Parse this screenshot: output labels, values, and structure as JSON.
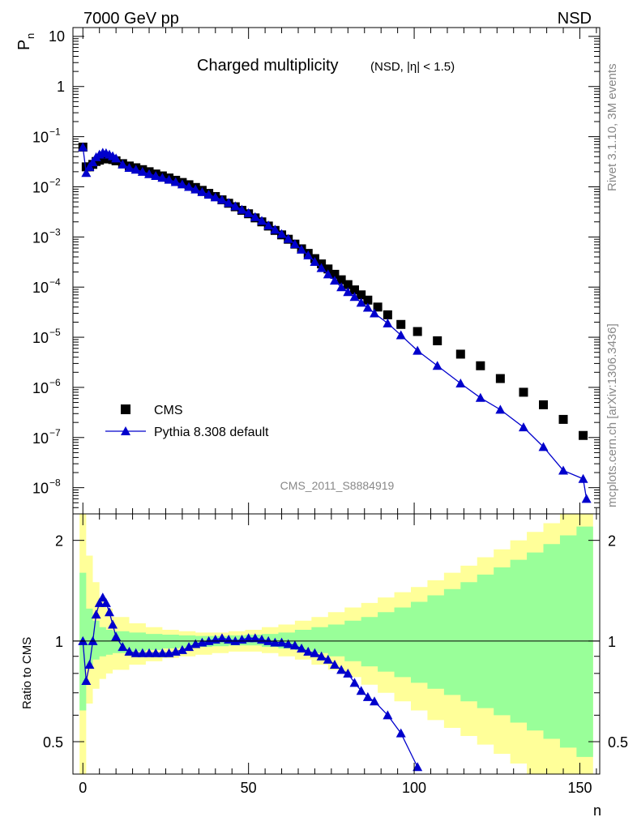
{
  "header": {
    "left": "7000 GeV pp",
    "right": "NSD"
  },
  "side": {
    "rivet": "Rivet 3.1.10,  3M events",
    "mcplots": "mcplots.cern.ch [arXiv:1306.3436]"
  },
  "watermark": "CMS_2011_S8884919",
  "chart_data": [
    {
      "type": "scatter",
      "title": "Charged multiplicity",
      "subtitle": "(NSD, |η| < 1.5)",
      "ylabel": "P",
      "ylabel_sub": "n",
      "yscale": "log",
      "ylim": [
        3e-09,
        15
      ],
      "xlim": [
        -3,
        156
      ],
      "ytick_labels": [
        {
          "v": 10,
          "label": "10"
        },
        {
          "v": 1,
          "label": "1"
        },
        {
          "v": 0.1,
          "base": "10",
          "exp": "−1"
        },
        {
          "v": 0.01,
          "base": "10",
          "exp": "−2"
        },
        {
          "v": 0.001,
          "base": "10",
          "exp": "−3"
        },
        {
          "v": 0.0001,
          "base": "10",
          "exp": "−4"
        },
        {
          "v": 1e-05,
          "base": "10",
          "exp": "−5"
        },
        {
          "v": 1e-06,
          "base": "10",
          "exp": "−6"
        },
        {
          "v": 1e-07,
          "base": "10",
          "exp": "−7"
        },
        {
          "v": 1e-08,
          "base": "10",
          "exp": "−8"
        }
      ],
      "legend": [
        {
          "label": "CMS",
          "marker": "square",
          "color": "#000000"
        },
        {
          "label": "Pythia 8.308 default",
          "marker": "triangle",
          "color": "#0000cc"
        }
      ],
      "series": [
        {
          "name": "CMS",
          "marker": "square",
          "color": "#000000",
          "points": [
            [
              0,
              0.062
            ],
            [
              1,
              0.025
            ],
            [
              2,
              0.025
            ],
            [
              3,
              0.028
            ],
            [
              4,
              0.032
            ],
            [
              5,
              0.034
            ],
            [
              6,
              0.036
            ],
            [
              7,
              0.037
            ],
            [
              8,
              0.036
            ],
            [
              9,
              0.035
            ],
            [
              10,
              0.033
            ],
            [
              12,
              0.029
            ],
            [
              14,
              0.026
            ],
            [
              16,
              0.024
            ],
            [
              18,
              0.022
            ],
            [
              20,
              0.02
            ],
            [
              22,
              0.018
            ],
            [
              24,
              0.0165
            ],
            [
              26,
              0.015
            ],
            [
              28,
              0.0135
            ],
            [
              30,
              0.0122
            ],
            [
              32,
              0.011
            ],
            [
              34,
              0.0097
            ],
            [
              36,
              0.0085
            ],
            [
              38,
              0.0074
            ],
            [
              40,
              0.0064
            ],
            [
              42,
              0.0055
            ],
            [
              44,
              0.0047
            ],
            [
              46,
              0.004
            ],
            [
              48,
              0.0034
            ],
            [
              50,
              0.0029
            ],
            [
              52,
              0.0024
            ],
            [
              54,
              0.002
            ],
            [
              56,
              0.00165
            ],
            [
              58,
              0.00135
            ],
            [
              60,
              0.0011
            ],
            [
              62,
              0.0009
            ],
            [
              64,
              0.00072
            ],
            [
              66,
              0.00058
            ],
            [
              68,
              0.00047
            ],
            [
              70,
              0.00037
            ],
            [
              72,
              0.00029
            ],
            [
              74,
              0.00023
            ],
            [
              76,
              0.00018
            ],
            [
              78,
              0.00014
            ],
            [
              80,
              0.000112
            ],
            [
              82,
              8.8e-05
            ],
            [
              84,
              7e-05
            ],
            [
              86,
              5.5e-05
            ],
            [
              89,
              4e-05
            ],
            [
              92,
              2.8e-05
            ],
            [
              96,
              1.8e-05
            ],
            [
              101,
              1.3e-05
            ],
            [
              107,
              8.5e-06
            ],
            [
              114,
              4.6e-06
            ],
            [
              120,
              2.7e-06
            ],
            [
              126,
              1.5e-06
            ],
            [
              133,
              8e-07
            ],
            [
              139,
              4.5e-07
            ],
            [
              145,
              2.3e-07
            ],
            [
              151,
              1.1e-07
            ]
          ]
        },
        {
          "name": "Pythia 8.308 default",
          "marker": "triangle",
          "color": "#0000cc",
          "points": [
            [
              0,
              0.062
            ],
            [
              1,
              0.019
            ],
            [
              2,
              0.025
            ],
            [
              3,
              0.031
            ],
            [
              4,
              0.039
            ],
            [
              5,
              0.044
            ],
            [
              6,
              0.048
            ],
            [
              7,
              0.047
            ],
            [
              8,
              0.044
            ],
            [
              9,
              0.041
            ],
            [
              10,
              0.037
            ],
            [
              12,
              0.028
            ],
            [
              14,
              0.024
            ],
            [
              16,
              0.022
            ],
            [
              18,
              0.02
            ],
            [
              20,
              0.018
            ],
            [
              22,
              0.0165
            ],
            [
              24,
              0.0152
            ],
            [
              26,
              0.0139
            ],
            [
              28,
              0.0125
            ],
            [
              30,
              0.0112
            ],
            [
              32,
              0.01
            ],
            [
              34,
              0.0089
            ],
            [
              36,
              0.0079
            ],
            [
              38,
              0.007
            ],
            [
              40,
              0.0062
            ],
            [
              42,
              0.0055
            ],
            [
              44,
              0.0048
            ],
            [
              46,
              0.0041
            ],
            [
              48,
              0.0035
            ],
            [
              50,
              0.003
            ],
            [
              52,
              0.0025
            ],
            [
              54,
              0.0021
            ],
            [
              56,
              0.0017
            ],
            [
              58,
              0.0014
            ],
            [
              60,
              0.00115
            ],
            [
              62,
              0.00092
            ],
            [
              64,
              0.00072
            ],
            [
              66,
              0.00056
            ],
            [
              68,
              0.00043
            ],
            [
              70,
              0.00032
            ],
            [
              72,
              0.00024
            ],
            [
              74,
              0.00018
            ],
            [
              76,
              0.000135
            ],
            [
              78,
              0.0001
            ],
            [
              80,
              8e-05
            ],
            [
              82,
              6.4e-05
            ],
            [
              84,
              4.9e-05
            ],
            [
              86,
              3.9e-05
            ],
            [
              88,
              3e-05
            ],
            [
              92,
              1.9e-05
            ],
            [
              96,
              1.1e-05
            ],
            [
              101,
              5.4e-06
            ],
            [
              107,
              2.7e-06
            ],
            [
              114,
              1.2e-06
            ],
            [
              120,
              6.2e-07
            ],
            [
              126,
              3.6e-07
            ],
            [
              133,
              1.6e-07
            ],
            [
              139,
              6.5e-08
            ],
            [
              145,
              2.2e-08
            ],
            [
              151,
              1.5e-08
            ],
            [
              152,
              6e-09
            ]
          ]
        }
      ]
    },
    {
      "type": "line",
      "ylabel": "Ratio to CMS",
      "yscale": "log",
      "ylim": [
        0.4,
        2.4
      ],
      "xlim": [
        -3,
        156
      ],
      "reference": 1,
      "xlabel": "n",
      "xticks": [
        0,
        50,
        100,
        150
      ],
      "yticks": [
        {
          "v": 2,
          "label": "2"
        },
        {
          "v": 1,
          "label": "1"
        },
        {
          "v": 0.5,
          "label": "0.5"
        }
      ],
      "bands": [
        {
          "name": "outer",
          "color": "#ffff99",
          "x": [
            0,
            2,
            4,
            6,
            8,
            10,
            15,
            20,
            25,
            30,
            35,
            40,
            45,
            50,
            55,
            60,
            65,
            70,
            75,
            80,
            85,
            90,
            95,
            100,
            105,
            110,
            115,
            120,
            125,
            130,
            135,
            140,
            145,
            150
          ],
          "lo": [
            0.4,
            0.65,
            0.72,
            0.77,
            0.8,
            0.82,
            0.85,
            0.87,
            0.89,
            0.9,
            0.91,
            0.92,
            0.93,
            0.93,
            0.92,
            0.9,
            0.88,
            0.85,
            0.82,
            0.78,
            0.74,
            0.7,
            0.66,
            0.62,
            0.58,
            0.55,
            0.52,
            0.49,
            0.46,
            0.43,
            0.4,
            0.4,
            0.4,
            0.4
          ],
          "hi": [
            2.4,
            1.8,
            1.5,
            1.35,
            1.25,
            1.18,
            1.13,
            1.1,
            1.08,
            1.07,
            1.06,
            1.06,
            1.07,
            1.08,
            1.1,
            1.12,
            1.15,
            1.18,
            1.22,
            1.26,
            1.3,
            1.35,
            1.4,
            1.45,
            1.52,
            1.6,
            1.68,
            1.78,
            1.88,
            2.0,
            2.12,
            2.25,
            2.4,
            2.4
          ]
        },
        {
          "name": "inner",
          "color": "#99ff99",
          "x": [
            0,
            2,
            4,
            6,
            8,
            10,
            15,
            20,
            25,
            30,
            35,
            40,
            45,
            50,
            55,
            60,
            65,
            70,
            75,
            80,
            85,
            90,
            95,
            100,
            105,
            110,
            115,
            120,
            125,
            130,
            135,
            140,
            145,
            150
          ],
          "lo": [
            0.62,
            0.85,
            0.88,
            0.9,
            0.91,
            0.92,
            0.93,
            0.94,
            0.95,
            0.955,
            0.96,
            0.965,
            0.97,
            0.97,
            0.96,
            0.95,
            0.94,
            0.92,
            0.9,
            0.87,
            0.84,
            0.81,
            0.78,
            0.75,
            0.72,
            0.69,
            0.66,
            0.63,
            0.6,
            0.57,
            0.54,
            0.51,
            0.48,
            0.45
          ],
          "hi": [
            1.6,
            1.25,
            1.15,
            1.1,
            1.08,
            1.07,
            1.06,
            1.05,
            1.045,
            1.04,
            1.035,
            1.035,
            1.04,
            1.045,
            1.05,
            1.06,
            1.08,
            1.1,
            1.12,
            1.15,
            1.18,
            1.22,
            1.26,
            1.31,
            1.37,
            1.43,
            1.5,
            1.58,
            1.66,
            1.75,
            1.84,
            1.95,
            2.07,
            2.2
          ]
        }
      ],
      "series": [
        {
          "name": "Pythia 8.308 default",
          "marker": "triangle",
          "color": "#0000cc",
          "points": [
            [
              0,
              1.0
            ],
            [
              1,
              0.76
            ],
            [
              2,
              0.85
            ],
            [
              3,
              1.0
            ],
            [
              4,
              1.2
            ],
            [
              5,
              1.3
            ],
            [
              6,
              1.35
            ],
            [
              7,
              1.3
            ],
            [
              8,
              1.22
            ],
            [
              9,
              1.12
            ],
            [
              10,
              1.03
            ],
            [
              12,
              0.96
            ],
            [
              14,
              0.93
            ],
            [
              16,
              0.92
            ],
            [
              18,
              0.92
            ],
            [
              20,
              0.92
            ],
            [
              22,
              0.92
            ],
            [
              24,
              0.92
            ],
            [
              26,
              0.92
            ],
            [
              28,
              0.93
            ],
            [
              30,
              0.94
            ],
            [
              32,
              0.96
            ],
            [
              34,
              0.98
            ],
            [
              36,
              0.99
            ],
            [
              38,
              1.0
            ],
            [
              40,
              1.01
            ],
            [
              42,
              1.02
            ],
            [
              44,
              1.01
            ],
            [
              46,
              1.0
            ],
            [
              48,
              1.01
            ],
            [
              50,
              1.02
            ],
            [
              52,
              1.02
            ],
            [
              54,
              1.01
            ],
            [
              56,
              1.0
            ],
            [
              58,
              0.99
            ],
            [
              60,
              0.99
            ],
            [
              62,
              0.98
            ],
            [
              64,
              0.97
            ],
            [
              66,
              0.95
            ],
            [
              68,
              0.93
            ],
            [
              70,
              0.92
            ],
            [
              72,
              0.9
            ],
            [
              74,
              0.88
            ],
            [
              76,
              0.85
            ],
            [
              78,
              0.82
            ],
            [
              80,
              0.8
            ],
            [
              82,
              0.75
            ],
            [
              84,
              0.71
            ],
            [
              86,
              0.68
            ],
            [
              88,
              0.66
            ],
            [
              92,
              0.6
            ],
            [
              96,
              0.53
            ],
            [
              101,
              0.42
            ]
          ]
        }
      ]
    }
  ]
}
